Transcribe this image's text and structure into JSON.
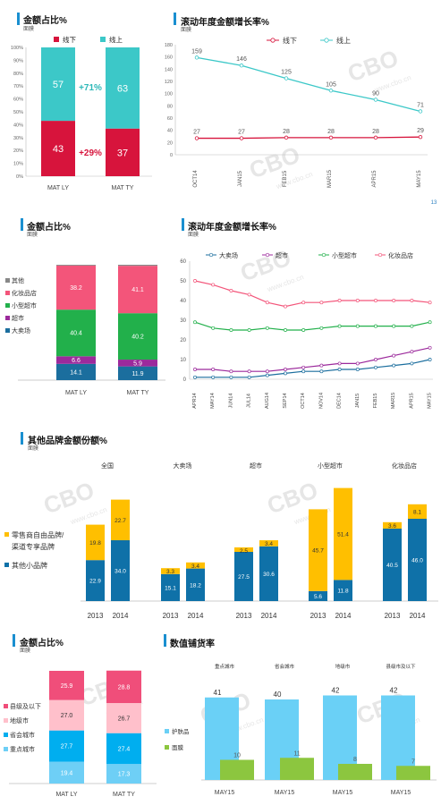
{
  "chart_data": [
    {
      "id": "c1",
      "type": "bar",
      "title": "金额占比%",
      "subtitle": "面膜",
      "categories": [
        "MAT LY",
        "MAT TY"
      ],
      "series": [
        {
          "name": "线下",
          "values": [
            43,
            37
          ],
          "color": "#d7143c"
        },
        {
          "name": "线上",
          "values": [
            57,
            63
          ],
          "color": "#3cc8c8"
        }
      ],
      "ylim": [
        0,
        100
      ],
      "yticks": [
        "0%",
        "10%",
        "20%",
        "30%",
        "40%",
        "50%",
        "60%",
        "70%",
        "80%",
        "90%",
        "100%"
      ],
      "annotations": [
        "+71%",
        "+29%"
      ]
    },
    {
      "id": "c2",
      "type": "line",
      "title": "滚动年度金额增长率%",
      "subtitle": "面膜",
      "x": [
        "OCT14",
        "JAN15",
        "FEB15",
        "MAR15",
        "APR15",
        "MAY15"
      ],
      "series": [
        {
          "name": "线下",
          "values": [
            27,
            27,
            28,
            28,
            28,
            29
          ],
          "color": "#d7143c"
        },
        {
          "name": "线上",
          "values": [
            159,
            146,
            125,
            105,
            90,
            71
          ],
          "color": "#3cc8c8"
        }
      ],
      "ylim": [
        0,
        180
      ],
      "yticks": [
        "0",
        "20",
        "40",
        "60",
        "80",
        "100",
        "120",
        "140",
        "160",
        "180"
      ],
      "page_mark": "13"
    },
    {
      "id": "c3",
      "type": "bar",
      "title": "金额占比%",
      "subtitle": "面膜",
      "categories": [
        "MAT LY",
        "MAT TY"
      ],
      "series": [
        {
          "name": "大卖场",
          "values": [
            14.1,
            11.9
          ],
          "color": "#1b6e9e"
        },
        {
          "name": "超市",
          "values": [
            6.6,
            5.9
          ],
          "color": "#9c2a9c"
        },
        {
          "name": "小型超市",
          "values": [
            40.4,
            40.2
          ],
          "color": "#22b04b"
        },
        {
          "name": "化妆品店",
          "values": [
            38.2,
            41.1
          ],
          "color": "#f3557a"
        },
        {
          "name": "其他",
          "values": [
            0.7,
            0.9
          ],
          "color": "#888888"
        }
      ],
      "legend_order": [
        "其他",
        "化妆品店",
        "小型超市",
        "超市",
        "大卖场"
      ]
    },
    {
      "id": "c4",
      "type": "line",
      "title": "滚动年度金额增长率%",
      "subtitle": "面膜",
      "x": [
        "APR14",
        "MAY14",
        "JUN14",
        "JUL14",
        "AUG14",
        "SEP14",
        "OCT14",
        "NOV14",
        "DEC14",
        "JAN15",
        "FEB15",
        "MAR15",
        "APR15",
        "MAY15"
      ],
      "series": [
        {
          "name": "大卖场",
          "values": [
            1,
            1,
            1,
            1,
            2,
            3,
            4,
            4,
            5,
            5,
            6,
            7,
            8,
            10
          ],
          "color": "#1b6e9e"
        },
        {
          "name": "超市",
          "values": [
            5,
            5,
            4,
            4,
            4,
            5,
            6,
            7,
            8,
            8,
            10,
            12,
            14,
            16
          ],
          "color": "#9c2a9c"
        },
        {
          "name": "小型超市",
          "values": [
            29,
            26,
            25,
            25,
            26,
            25,
            25,
            26,
            27,
            27,
            27,
            27,
            27,
            29
          ],
          "color": "#22b04b"
        },
        {
          "name": "化妆品店",
          "values": [
            50,
            48,
            45,
            43,
            39,
            37,
            39,
            39,
            40,
            40,
            40,
            40,
            40,
            39
          ],
          "color": "#f3557a"
        }
      ],
      "ylim": [
        0,
        60
      ],
      "yticks": [
        "0",
        "10",
        "20",
        "30",
        "40",
        "50",
        "60"
      ]
    },
    {
      "id": "c5",
      "type": "bar",
      "title": "其他品牌金额份额%",
      "subtitle": "面膜",
      "groups": [
        {
          "label": "全国",
          "years": [
            "2013",
            "2014"
          ],
          "blue": [
            22.9,
            34.0
          ],
          "orange": [
            19.8,
            22.7
          ]
        },
        {
          "label": "大卖场",
          "years": [
            "2013",
            "2014"
          ],
          "blue": [
            15.1,
            18.2
          ],
          "orange": [
            3.3,
            3.4
          ]
        },
        {
          "label": "超市",
          "years": [
            "2013",
            "2014"
          ],
          "blue": [
            27.5,
            30.6
          ],
          "orange": [
            2.5,
            3.4
          ]
        },
        {
          "label": "小型超市",
          "years": [
            "2013",
            "2014"
          ],
          "blue": [
            5.6,
            11.8
          ],
          "orange": [
            45.7,
            51.4
          ]
        },
        {
          "label": "化妆品店",
          "years": [
            "2013",
            "2014"
          ],
          "blue": [
            40.5,
            46.0
          ],
          "orange": [
            3.6,
            8.1
          ]
        }
      ],
      "series": [
        {
          "name": "零售商自由品牌/渠道专享品牌",
          "color": "#ffbf00"
        },
        {
          "name": "其他小品牌",
          "color": "#0f71a8"
        }
      ],
      "legend_lines": [
        "零售商自由品牌/",
        "渠道专享品牌",
        "其他小品牌"
      ]
    },
    {
      "id": "c6",
      "type": "bar",
      "title": "金额占比%",
      "subtitle": "面膜",
      "categories": [
        "MAT LY",
        "MAT TY"
      ],
      "series": [
        {
          "name": "重点城市",
          "values": [
            19.4,
            17.3
          ],
          "color": "#6ecff6"
        },
        {
          "name": "省会城市",
          "values": [
            27.7,
            27.4
          ],
          "color": "#00aeef"
        },
        {
          "name": "地级市",
          "values": [
            27.0,
            26.7
          ],
          "color": "#ffc0cb"
        },
        {
          "name": "县级及以下",
          "values": [
            25.9,
            28.8
          ],
          "color": "#f04e7a"
        }
      ],
      "legend_order": [
        "县级及以下",
        "地级市",
        "省会城市",
        "重点城市"
      ]
    },
    {
      "id": "c7",
      "type": "bar",
      "title": "数值铺货率",
      "groups": [
        "重点城市",
        "省会城市",
        "地级市",
        "县级市及以下"
      ],
      "x": [
        "MAY15",
        "MAY15",
        "MAY15",
        "MAY15"
      ],
      "series": [
        {
          "name": "护肤品",
          "values": [
            41,
            40,
            42,
            42
          ],
          "color": "#6ad0f6"
        },
        {
          "name": "面膜",
          "values": [
            10,
            11,
            8,
            7
          ],
          "color": "#8cc63f"
        }
      ]
    }
  ],
  "watermark": {
    "text": "CBO",
    "url": "www.cbo.cn"
  }
}
